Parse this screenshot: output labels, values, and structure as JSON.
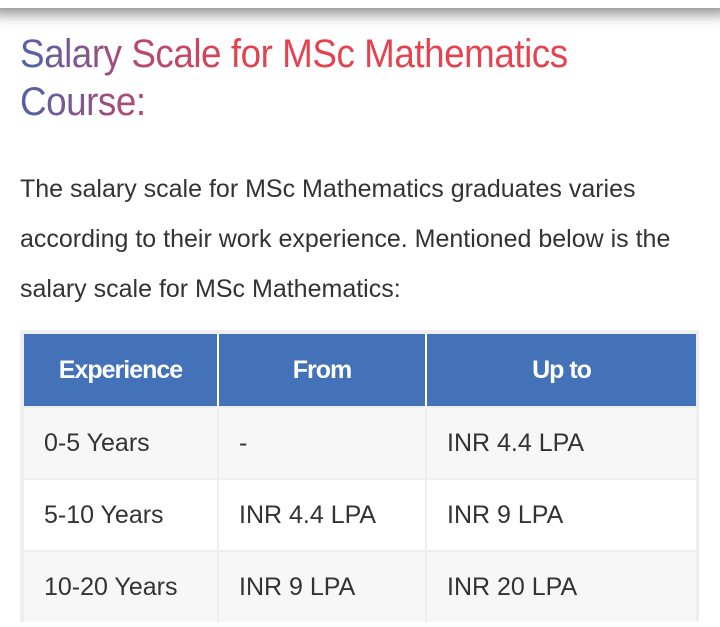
{
  "section": {
    "title": "Salary Scale for MSc Mathematics Course:",
    "paragraph": "The salary scale for MSc Mathematics graduates varies according to their work experience. Mentioned below is the salary scale for MSc Mathematics:"
  },
  "table": {
    "headers": [
      "Experience",
      "From",
      "Up to"
    ],
    "rows": [
      [
        "0-5 Years",
        "-",
        "INR 4.4 LPA"
      ],
      [
        "5-10 Years",
        "INR 4.4 LPA",
        "INR 9 LPA"
      ],
      [
        "10-20 Years",
        "INR 9 LPA",
        "INR 20 LPA"
      ]
    ],
    "header_color": "#4472b8"
  }
}
